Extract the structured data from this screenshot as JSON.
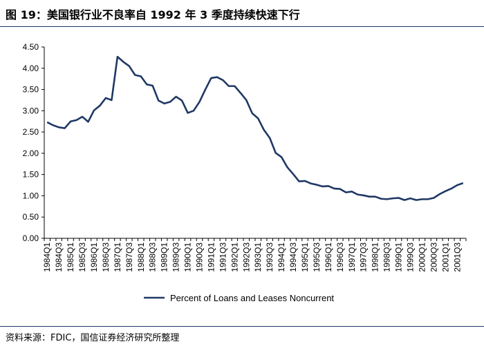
{
  "header": {
    "title": "图 19：美国银行业不良率自 1992 年 3 季度持续快速下行"
  },
  "footer": {
    "source": "资料来源：FDIC，国信证券经济研究所整理"
  },
  "chart_data": {
    "type": "line",
    "title": "",
    "xlabel": "",
    "ylabel": "",
    "ylim": [
      0,
      4.5
    ],
    "yticks": [
      "0.00",
      "0.50",
      "1.00",
      "1.50",
      "2.00",
      "2.50",
      "3.00",
      "3.50",
      "4.00",
      "4.50"
    ],
    "grid": false,
    "legend_position": "bottom",
    "line_color": "#1f3864",
    "categories": [
      "1984Q1",
      "1984Q2",
      "1984Q3",
      "1984Q4",
      "1985Q1",
      "1985Q2",
      "1985Q3",
      "1985Q4",
      "1986Q1",
      "1986Q2",
      "1986Q3",
      "1986Q4",
      "1987Q1",
      "1987Q2",
      "1987Q3",
      "1987Q4",
      "1988Q1",
      "1988Q2",
      "1988Q3",
      "1988Q4",
      "1989Q1",
      "1989Q2",
      "1989Q3",
      "1989Q4",
      "1990Q1",
      "1990Q2",
      "1990Q3",
      "1990Q4",
      "1991Q1",
      "1991Q2",
      "1991Q3",
      "1991Q4",
      "1992Q1",
      "1992Q2",
      "1992Q3",
      "1992Q4",
      "1993Q1",
      "1993Q2",
      "1993Q3",
      "1993Q4",
      "1994Q1",
      "1994Q2",
      "1994Q3",
      "1994Q4",
      "1995Q1",
      "1995Q2",
      "1995Q3",
      "1995Q4",
      "1996Q1",
      "1996Q2",
      "1996Q3",
      "1996Q4",
      "1997Q1",
      "1997Q2",
      "1997Q3",
      "1997Q4",
      "1998Q1",
      "1998Q2",
      "1998Q3",
      "1998Q4",
      "1999Q1",
      "1999Q2",
      "1999Q3",
      "1999Q4",
      "2000Q1",
      "2000Q2",
      "2000Q3",
      "2000Q4",
      "2001Q1",
      "2001Q2",
      "2001Q3",
      "2001Q4"
    ],
    "x_tick_labels": [
      "1984Q1",
      "1984Q3",
      "1985Q1",
      "1985Q3",
      "1986Q1",
      "1986Q3",
      "1987Q1",
      "1987Q3",
      "1988Q1",
      "1988Q3",
      "1989Q1",
      "1989Q3",
      "1990Q1",
      "1990Q3",
      "1991Q1",
      "1991Q3",
      "1992Q1",
      "1992Q3",
      "1993Q1",
      "1993Q3",
      "1994Q1",
      "1994Q3",
      "1995Q1",
      "1995Q3",
      "1996Q1",
      "1996Q3",
      "1997Q1",
      "1997Q3",
      "1998Q1",
      "1998Q3",
      "1999Q1",
      "1999Q3",
      "2000Q1",
      "2000Q3",
      "2001Q1",
      "2001Q3"
    ],
    "series": [
      {
        "name": "Percent of Loans and Leases Noncurrent",
        "values": [
          2.73,
          2.66,
          2.61,
          2.59,
          2.75,
          2.78,
          2.86,
          2.74,
          3.01,
          3.12,
          3.3,
          3.25,
          4.27,
          4.15,
          4.05,
          3.84,
          3.81,
          3.62,
          3.59,
          3.24,
          3.17,
          3.21,
          3.33,
          3.24,
          2.95,
          3.0,
          3.21,
          3.5,
          3.77,
          3.79,
          3.72,
          3.58,
          3.58,
          3.42,
          3.25,
          2.94,
          2.82,
          2.55,
          2.36,
          2.01,
          1.91,
          1.67,
          1.51,
          1.34,
          1.35,
          1.29,
          1.26,
          1.22,
          1.23,
          1.17,
          1.16,
          1.08,
          1.1,
          1.03,
          1.01,
          0.98,
          0.98,
          0.93,
          0.92,
          0.94,
          0.95,
          0.9,
          0.94,
          0.9,
          0.92,
          0.92,
          0.95,
          1.04,
          1.11,
          1.17,
          1.25,
          1.3
        ]
      }
    ]
  }
}
